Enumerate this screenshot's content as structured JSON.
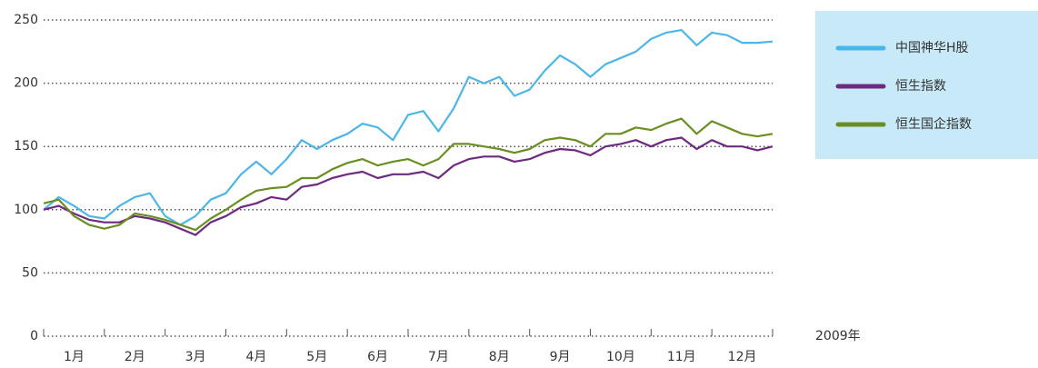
{
  "chart_data": {
    "type": "line",
    "x_label": "2009年",
    "categories": [
      null,
      null,
      "1月",
      null,
      null,
      null,
      "2月",
      null,
      null,
      null,
      "3月",
      null,
      null,
      null,
      "4月",
      null,
      null,
      null,
      "5月",
      null,
      null,
      null,
      "6月",
      null,
      null,
      null,
      "7月",
      null,
      null,
      null,
      "8月",
      null,
      null,
      null,
      "9月",
      null,
      null,
      null,
      "10月",
      null,
      null,
      null,
      "11月",
      null,
      null,
      null,
      "12月",
      null,
      null
    ],
    "series": [
      {
        "name": "中国神华H股",
        "color": "#4db6e8",
        "values": [
          100,
          110,
          103,
          95,
          93,
          103,
          110,
          113,
          95,
          88,
          95,
          108,
          113,
          128,
          138,
          128,
          140,
          155,
          148,
          155,
          160,
          168,
          165,
          155,
          175,
          178,
          162,
          180,
          205,
          200,
          205,
          190,
          195,
          210,
          222,
          215,
          205,
          215,
          220,
          225,
          235,
          240,
          242,
          230,
          240,
          238,
          232,
          232,
          233
        ]
      },
      {
        "name": "恒生指数",
        "color": "#6e2a80",
        "values": [
          100,
          103,
          97,
          92,
          90,
          90,
          95,
          93,
          90,
          85,
          80,
          90,
          95,
          102,
          105,
          110,
          108,
          118,
          120,
          125,
          128,
          130,
          125,
          128,
          128,
          130,
          125,
          135,
          140,
          142,
          142,
          138,
          140,
          145,
          148,
          147,
          143,
          150,
          152,
          155,
          150,
          155,
          157,
          148,
          155,
          150,
          150,
          147,
          150
        ]
      },
      {
        "name": "恒生国企指数",
        "color": "#6b8e23",
        "values": [
          105,
          108,
          95,
          88,
          85,
          88,
          97,
          95,
          92,
          88,
          84,
          93,
          100,
          108,
          115,
          117,
          118,
          125,
          125,
          132,
          137,
          140,
          135,
          138,
          140,
          135,
          140,
          152,
          152,
          150,
          148,
          145,
          148,
          155,
          157,
          155,
          150,
          160,
          160,
          165,
          163,
          168,
          172,
          160,
          170,
          165,
          160,
          158,
          160
        ]
      }
    ],
    "ylim": [
      0,
      250
    ],
    "yticks": [
      0,
      50,
      100,
      150,
      200,
      250
    ],
    "grid": true,
    "legend": "right"
  }
}
